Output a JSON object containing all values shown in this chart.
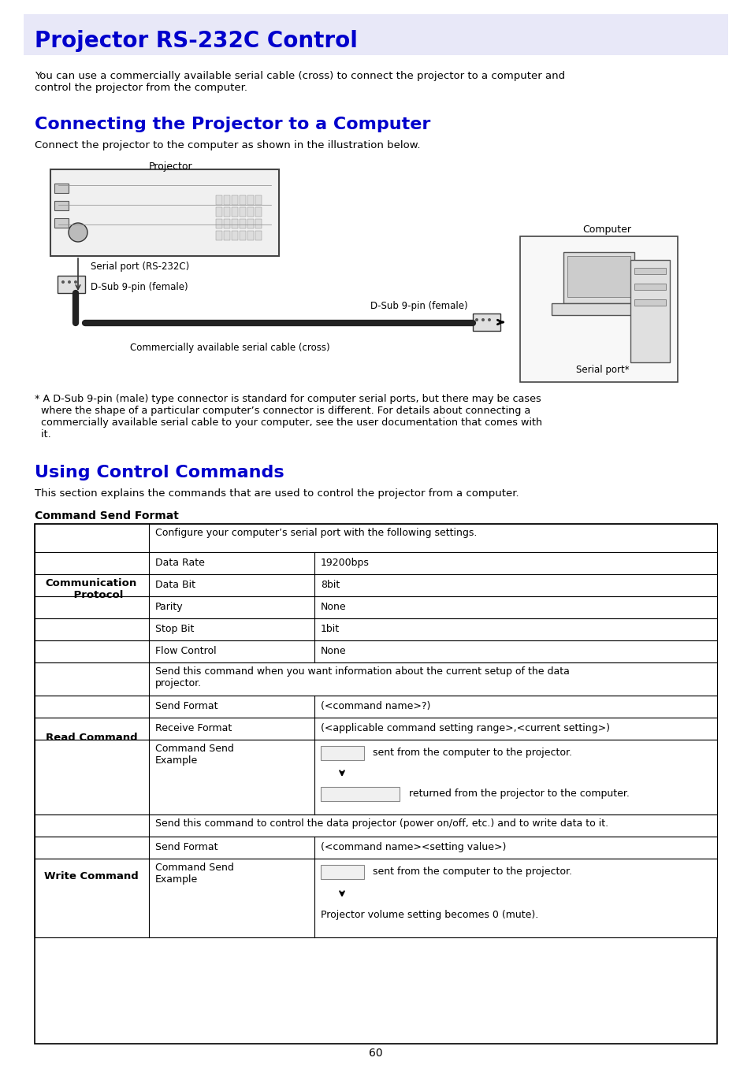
{
  "page_bg": "#ffffff",
  "title_bg": "#e8e8f8",
  "title_text": "Projector RS-232C Control",
  "title_color": "#0000cc",
  "title_fontsize": 20,
  "section1_title": "Connecting the Projector to a Computer",
  "section1_color": "#0000cc",
  "section1_fontsize": 16,
  "section1_intro": "Connect the projector to the computer as shown in the illustration below.",
  "section2_title": "Using Control Commands",
  "section2_color": "#0000cc",
  "section2_fontsize": 16,
  "section2_intro": "This section explains the commands that are used to control the projector from a computer.",
  "body_intro": "You can use a commercially available serial cable (cross) to connect the projector to a computer and\ncontrol the projector from the computer.",
  "footnote": "* A D-Sub 9-pin (male) type connector is standard for computer serial ports, but there may be cases\n  where the shape of a particular computer’s connector is different. For details about connecting a\n  commercially available serial cable to your computer, see the user documentation that comes with\n  it.",
  "cmd_format_title": "Command Send Format",
  "table_header_bg": "#e8e8f8",
  "table_border": "#000000",
  "page_number": "60"
}
